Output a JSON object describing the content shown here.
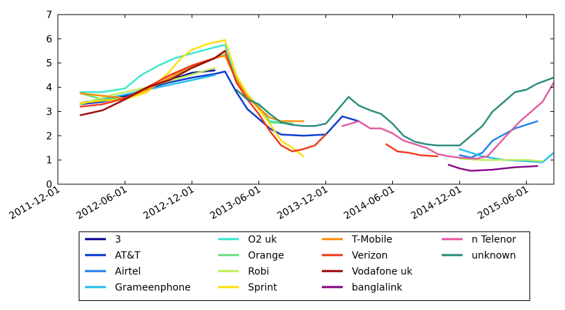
{
  "chart_data": {
    "type": "line",
    "title": "",
    "xlabel": "",
    "ylabel": "",
    "ylim": [
      0,
      7
    ],
    "xlim": [
      "2011-12-01",
      "2015-08-15"
    ],
    "yticks": [
      0,
      1,
      2,
      3,
      4,
      5,
      6,
      7
    ],
    "xticks": [
      "2011-12-01",
      "2012-06-01",
      "2012-12-01",
      "2013-06-01",
      "2013-12-01",
      "2014-06-01",
      "2014-12-01",
      "2015-06-01"
    ],
    "legend_position": "bottom",
    "series": [
      {
        "name": "3",
        "color": "#00008b",
        "points": [
          [
            "2012-02-01",
            3.3
          ],
          [
            "2012-04-01",
            3.45
          ],
          [
            "2012-06-01",
            3.65
          ],
          [
            "2012-08-01",
            3.95
          ],
          [
            "2012-10-01",
            4.3
          ],
          [
            "2012-12-01",
            4.6
          ],
          [
            "2013-02-01",
            4.7
          ]
        ]
      },
      {
        "name": "AT&T",
        "color": "#0033cc",
        "points": [
          [
            "2012-02-01",
            3.3
          ],
          [
            "2012-04-01",
            3.4
          ],
          [
            "2012-06-01",
            3.6
          ],
          [
            "2012-08-01",
            3.95
          ],
          [
            "2012-10-01",
            4.2
          ],
          [
            "2012-12-01",
            4.4
          ],
          [
            "2013-02-01",
            4.55
          ],
          [
            "2013-03-01",
            4.65
          ],
          [
            "2013-04-01",
            3.8
          ],
          [
            "2013-05-01",
            3.1
          ],
          [
            "2013-06-01",
            2.7
          ],
          [
            "2013-07-01",
            2.3
          ],
          [
            "2013-08-01",
            2.05
          ],
          [
            "2013-10-01",
            2.0
          ],
          [
            "2013-12-01",
            2.05
          ],
          [
            "2014-01-15",
            2.8
          ],
          [
            "2014-03-01",
            2.6
          ]
        ]
      },
      {
        "name": "Airtel",
        "color": "#1a7de6",
        "points": [
          [
            "2014-12-01",
            1.2
          ],
          [
            "2015-01-01",
            1.1
          ],
          [
            "2015-02-01",
            1.3
          ],
          [
            "2015-03-01",
            1.8
          ],
          [
            "2015-05-01",
            2.3
          ],
          [
            "2015-07-01",
            2.6
          ]
        ]
      },
      {
        "name": "Grameenphone",
        "color": "#22bbee",
        "points": [
          [
            "2012-02-01",
            3.35
          ],
          [
            "2012-05-01",
            3.6
          ],
          [
            "2012-08-01",
            3.9
          ],
          [
            "2012-11-01",
            4.2
          ],
          [
            "2013-02-01",
            4.5
          ],
          [
            "2014-12-01",
            1.45
          ],
          [
            "2015-02-01",
            1.15
          ],
          [
            "2015-04-01",
            1.0
          ],
          [
            "2015-06-01",
            0.95
          ],
          [
            "2015-07-15",
            0.9
          ],
          [
            "2015-08-15",
            1.3
          ]
        ]
      },
      {
        "name": "O2 uk",
        "color": "#33e6cc",
        "points": [
          [
            "2012-02-01",
            3.8
          ],
          [
            "2012-04-01",
            3.8
          ],
          [
            "2012-06-01",
            3.95
          ],
          [
            "2012-07-15",
            4.5
          ],
          [
            "2012-09-01",
            4.9
          ],
          [
            "2012-10-15",
            5.2
          ],
          [
            "2012-12-01",
            5.4
          ],
          [
            "2013-02-01",
            5.65
          ],
          [
            "2013-03-01",
            5.75
          ],
          [
            "2013-04-01",
            4.3
          ],
          [
            "2013-05-01",
            3.6
          ],
          [
            "2013-06-01",
            3.2
          ],
          [
            "2013-07-01",
            2.6
          ],
          [
            "2013-09-01",
            2.5
          ]
        ]
      },
      {
        "name": "Orange",
        "color": "#66dd77",
        "points": [
          [
            "2012-02-01",
            3.75
          ],
          [
            "2012-04-01",
            3.5
          ],
          [
            "2012-06-01",
            3.55
          ],
          [
            "2012-08-01",
            3.9
          ],
          [
            "2012-10-01",
            4.4
          ],
          [
            "2012-12-01",
            4.85
          ],
          [
            "2013-02-01",
            5.2
          ],
          [
            "2013-03-01",
            5.35
          ],
          [
            "2013-04-01",
            4.4
          ],
          [
            "2013-05-01",
            3.7
          ],
          [
            "2013-06-01",
            3.2
          ],
          [
            "2013-07-01",
            2.55
          ],
          [
            "2013-09-01",
            2.5
          ]
        ]
      },
      {
        "name": "Robi",
        "color": "#bbee55",
        "points": [
          [
            "2012-02-01",
            3.3
          ],
          [
            "2012-05-01",
            3.7
          ],
          [
            "2012-08-01",
            4.0
          ],
          [
            "2012-11-01",
            4.4
          ],
          [
            "2013-02-01",
            4.8
          ],
          [
            "2014-12-01",
            1.05
          ],
          [
            "2015-02-01",
            1.0
          ],
          [
            "2015-04-01",
            1.0
          ],
          [
            "2015-06-01",
            1.0
          ],
          [
            "2015-07-15",
            0.95
          ]
        ]
      },
      {
        "name": "Sprint",
        "color": "#ffdd00",
        "points": [
          [
            "2012-02-01",
            3.35
          ],
          [
            "2012-04-01",
            3.45
          ],
          [
            "2012-06-01",
            3.5
          ],
          [
            "2012-08-01",
            3.8
          ],
          [
            "2012-10-01",
            4.65
          ],
          [
            "2012-11-01",
            5.2
          ],
          [
            "2012-12-01",
            5.55
          ],
          [
            "2013-01-15",
            5.8
          ],
          [
            "2013-03-01",
            5.95
          ],
          [
            "2013-04-01",
            4.5
          ],
          [
            "2013-05-01",
            3.7
          ],
          [
            "2013-06-01",
            3.1
          ],
          [
            "2013-07-01",
            2.5
          ],
          [
            "2013-08-01",
            1.8
          ],
          [
            "2013-09-01",
            1.5
          ],
          [
            "2013-10-01",
            1.15
          ]
        ]
      },
      {
        "name": "T-Mobile",
        "color": "#ff8800",
        "points": [
          [
            "2012-02-01",
            3.75
          ],
          [
            "2012-04-01",
            3.65
          ],
          [
            "2012-06-01",
            3.55
          ],
          [
            "2012-08-01",
            3.9
          ],
          [
            "2012-10-01",
            4.4
          ],
          [
            "2012-12-01",
            4.9
          ],
          [
            "2013-02-01",
            5.2
          ],
          [
            "2013-03-01",
            5.3
          ],
          [
            "2013-04-01",
            4.3
          ],
          [
            "2013-05-01",
            3.6
          ],
          [
            "2013-06-01",
            3.15
          ],
          [
            "2013-07-01",
            2.75
          ],
          [
            "2013-08-01",
            2.6
          ],
          [
            "2013-10-01",
            2.6
          ]
        ]
      },
      {
        "name": "Verizon",
        "color": "#ee3311",
        "points": [
          [
            "2012-02-01",
            3.2
          ],
          [
            "2012-04-01",
            3.3
          ],
          [
            "2012-06-01",
            3.55
          ],
          [
            "2012-08-01",
            4.0
          ],
          [
            "2012-10-01",
            4.5
          ],
          [
            "2012-12-01",
            4.9
          ],
          [
            "2013-02-01",
            5.2
          ],
          [
            "2013-03-01",
            5.5
          ],
          [
            "2013-04-01",
            4.2
          ],
          [
            "2013-05-01",
            3.5
          ],
          [
            "2013-06-01",
            2.9
          ],
          [
            "2013-07-01",
            2.2
          ],
          [
            "2013-08-01",
            1.6
          ],
          [
            "2013-09-01",
            1.35
          ],
          [
            "2013-10-01",
            1.45
          ],
          [
            "2013-11-01",
            1.6
          ],
          [
            "2013-12-01",
            2.05
          ],
          [
            "2014-05-15",
            1.65
          ],
          [
            "2014-06-15",
            1.35
          ],
          [
            "2014-07-15",
            1.3
          ],
          [
            "2014-08-15",
            1.2
          ],
          [
            "2014-10-01",
            1.15
          ]
        ]
      },
      {
        "name": "Vodafone uk",
        "color": "#990000",
        "points": [
          [
            "2012-02-01",
            2.85
          ],
          [
            "2012-04-01",
            3.05
          ],
          [
            "2012-06-01",
            3.5
          ],
          [
            "2012-08-01",
            4.0
          ],
          [
            "2012-10-01",
            4.3
          ],
          [
            "2012-12-01",
            4.8
          ],
          [
            "2013-02-01",
            5.2
          ],
          [
            "2013-03-01",
            5.5
          ]
        ]
      },
      {
        "name": "banglalink",
        "color": "#800080",
        "points": [
          [
            "2014-11-01",
            0.8
          ],
          [
            "2014-12-01",
            0.65
          ],
          [
            "2015-01-01",
            0.55
          ],
          [
            "2015-03-01",
            0.6
          ],
          [
            "2015-05-01",
            0.7
          ],
          [
            "2015-07-01",
            0.75
          ]
        ]
      },
      {
        "name": "n Telenor",
        "color": "#e0559e",
        "points": [
          [
            "2014-01-15",
            2.4
          ],
          [
            "2014-03-01",
            2.6
          ],
          [
            "2014-04-01",
            2.3
          ],
          [
            "2014-05-01",
            2.3
          ],
          [
            "2014-06-01",
            2.1
          ],
          [
            "2014-07-01",
            1.8
          ],
          [
            "2014-09-01",
            1.5
          ],
          [
            "2014-10-01",
            1.25
          ],
          [
            "2014-11-01",
            1.15
          ],
          [
            "2014-12-01",
            1.1
          ],
          [
            "2015-01-15",
            1.05
          ],
          [
            "2015-02-15",
            1.15
          ],
          [
            "2015-04-01",
            1.9
          ],
          [
            "2015-05-15",
            2.6
          ],
          [
            "2015-07-15",
            3.4
          ],
          [
            "2015-08-15",
            4.2
          ]
        ]
      },
      {
        "name": "unknown",
        "color": "#228877",
        "points": [
          [
            "2013-04-01",
            3.9
          ],
          [
            "2013-05-01",
            3.5
          ],
          [
            "2013-06-01",
            3.3
          ],
          [
            "2013-07-01",
            2.9
          ],
          [
            "2013-08-01",
            2.55
          ],
          [
            "2013-09-01",
            2.45
          ],
          [
            "2013-10-01",
            2.4
          ],
          [
            "2013-11-01",
            2.4
          ],
          [
            "2013-12-01",
            2.5
          ],
          [
            "2014-01-01",
            3.05
          ],
          [
            "2014-02-01",
            3.6
          ],
          [
            "2014-03-01",
            3.25
          ],
          [
            "2014-04-01",
            3.05
          ],
          [
            "2014-05-01",
            2.9
          ],
          [
            "2014-06-01",
            2.5
          ],
          [
            "2014-07-01",
            2.0
          ],
          [
            "2014-08-01",
            1.75
          ],
          [
            "2014-09-01",
            1.65
          ],
          [
            "2014-10-01",
            1.6
          ],
          [
            "2014-11-01",
            1.6
          ],
          [
            "2014-12-01",
            1.6
          ],
          [
            "2015-01-01",
            2.0
          ],
          [
            "2015-02-01",
            2.4
          ],
          [
            "2015-03-01",
            3.0
          ],
          [
            "2015-04-01",
            3.4
          ],
          [
            "2015-05-01",
            3.8
          ],
          [
            "2015-06-01",
            3.9
          ],
          [
            "2015-07-01",
            4.15
          ],
          [
            "2015-08-15",
            4.4
          ]
        ]
      }
    ]
  }
}
